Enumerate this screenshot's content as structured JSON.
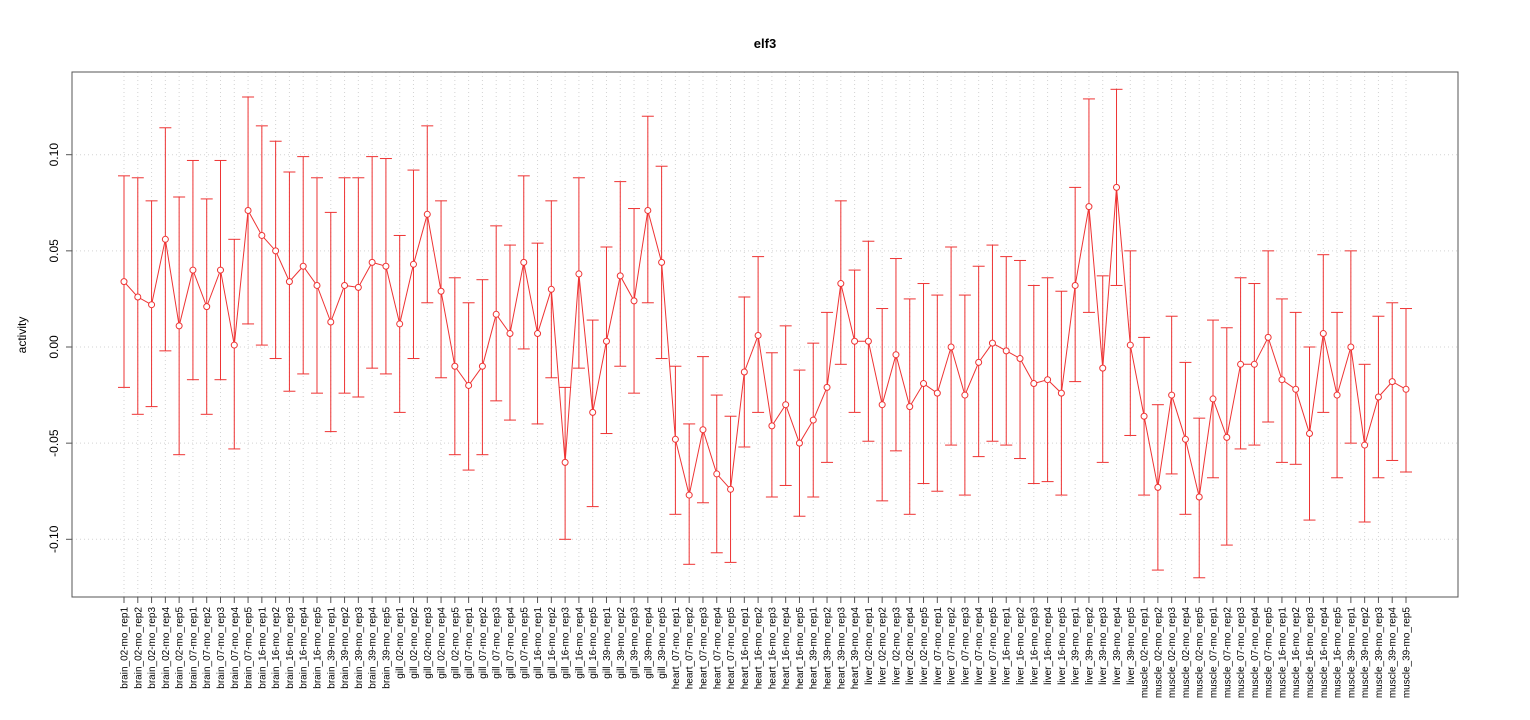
{
  "chart_data": {
    "type": "line",
    "title": "elf3",
    "xlabel": "",
    "ylabel": "activity",
    "ylim": [
      -0.13,
      0.143
    ],
    "yticks": [
      -0.1,
      -0.05,
      0.0,
      0.05,
      0.1
    ],
    "ytick_labels": [
      "-0.10",
      "-0.05",
      "0.00",
      "0.05",
      "0.10"
    ],
    "grid": true,
    "error_bars": true,
    "colors": {
      "series": "#ee3333",
      "grid": "#d3d3d3",
      "axis": "#555555"
    },
    "categories": [
      "brain_02-mo_rep1",
      "brain_02-mo_rep2",
      "brain_02-mo_rep3",
      "brain_02-mo_rep4",
      "brain_02-mo_rep5",
      "brain_07-mo_rep1",
      "brain_07-mo_rep2",
      "brain_07-mo_rep3",
      "brain_07-mo_rep4",
      "brain_07-mo_rep5",
      "brain_16-mo_rep1",
      "brain_16-mo_rep2",
      "brain_16-mo_rep3",
      "brain_16-mo_rep4",
      "brain_16-mo_rep5",
      "brain_39-mo_rep1",
      "brain_39-mo_rep2",
      "brain_39-mo_rep3",
      "brain_39-mo_rep4",
      "brain_39-mo_rep5",
      "gill_02-mo_rep1",
      "gill_02-mo_rep2",
      "gill_02-mo_rep3",
      "gill_02-mo_rep4",
      "gill_02-mo_rep5",
      "gill_07-mo_rep1",
      "gill_07-mo_rep2",
      "gill_07-mo_rep3",
      "gill_07-mo_rep4",
      "gill_07-mo_rep5",
      "gill_16-mo_rep1",
      "gill_16-mo_rep2",
      "gill_16-mo_rep3",
      "gill_16-mo_rep4",
      "gill_16-mo_rep5",
      "gill_39-mo_rep1",
      "gill_39-mo_rep2",
      "gill_39-mo_rep3",
      "gill_39-mo_rep4",
      "gill_39-mo_rep5",
      "heart_07-mo_rep1",
      "heart_07-mo_rep2",
      "heart_07-mo_rep3",
      "heart_07-mo_rep4",
      "heart_07-mo_rep5",
      "heart_16-mo_rep1",
      "heart_16-mo_rep2",
      "heart_16-mo_rep3",
      "heart_16-mo_rep4",
      "heart_16-mo_rep5",
      "heart_39-mo_rep1",
      "heart_39-mo_rep2",
      "heart_39-mo_rep3",
      "heart_39-mo_rep4",
      "liver_02-mo_rep1",
      "liver_02-mo_rep2",
      "liver_02-mo_rep3",
      "liver_02-mo_rep4",
      "liver_02-mo_rep5",
      "liver_07-mo_rep1",
      "liver_07-mo_rep2",
      "liver_07-mo_rep3",
      "liver_07-mo_rep4",
      "liver_07-mo_rep5",
      "liver_16-mo_rep1",
      "liver_16-mo_rep2",
      "liver_16-mo_rep3",
      "liver_16-mo_rep4",
      "liver_16-mo_rep5",
      "liver_39-mo_rep1",
      "liver_39-mo_rep2",
      "liver_39-mo_rep3",
      "liver_39-mo_rep4",
      "liver_39-mo_rep5",
      "muscle_02-mo_rep1",
      "muscle_02-mo_rep2",
      "muscle_02-mo_rep3",
      "muscle_02-mo_rep4",
      "muscle_02-mo_rep5",
      "muscle_07-mo_rep1",
      "muscle_07-mo_rep2",
      "muscle_07-mo_rep3",
      "muscle_07-mo_rep4",
      "muscle_07-mo_rep5",
      "muscle_16-mo_rep1",
      "muscle_16-mo_rep2",
      "muscle_16-mo_rep3",
      "muscle_16-mo_rep4",
      "muscle_16-mo_rep5",
      "muscle_39-mo_rep1",
      "muscle_39-mo_rep2",
      "muscle_39-mo_rep3",
      "muscle_39-mo_rep4",
      "muscle_39-mo_rep5"
    ],
    "values": [
      0.034,
      0.026,
      0.022,
      0.056,
      0.011,
      0.04,
      0.021,
      0.04,
      0.001,
      0.071,
      0.058,
      0.05,
      0.034,
      0.042,
      0.032,
      0.013,
      0.032,
      0.031,
      0.044,
      0.042,
      0.012,
      0.043,
      0.069,
      0.029,
      -0.01,
      -0.02,
      -0.01,
      0.017,
      0.007,
      0.044,
      0.007,
      0.03,
      -0.06,
      0.038,
      -0.034,
      0.003,
      0.037,
      0.024,
      0.071,
      0.044,
      -0.048,
      -0.077,
      -0.043,
      -0.066,
      -0.074,
      -0.013,
      0.006,
      -0.041,
      -0.03,
      -0.05,
      -0.038,
      -0.021,
      0.033,
      0.003,
      0.003,
      -0.03,
      -0.004,
      -0.031,
      -0.019,
      -0.024,
      0.0,
      -0.025,
      -0.008,
      0.002,
      -0.002,
      -0.006,
      -0.019,
      -0.017,
      -0.024,
      0.032,
      0.073,
      -0.011,
      0.083,
      0.001,
      -0.036,
      -0.073,
      -0.025,
      -0.048,
      -0.078,
      -0.027,
      -0.047,
      -0.009,
      -0.009,
      0.005,
      -0.017,
      -0.022,
      -0.045,
      0.007,
      -0.025,
      0.0,
      -0.051,
      -0.026,
      -0.018,
      -0.022
    ],
    "upper": [
      0.089,
      0.088,
      0.076,
      0.114,
      0.078,
      0.097,
      0.077,
      0.097,
      0.056,
      0.13,
      0.115,
      0.107,
      0.091,
      0.099,
      0.088,
      0.07,
      0.088,
      0.088,
      0.099,
      0.098,
      0.058,
      0.092,
      0.115,
      0.076,
      0.036,
      0.023,
      0.035,
      0.063,
      0.053,
      0.089,
      0.054,
      0.076,
      -0.021,
      0.088,
      0.014,
      0.052,
      0.086,
      0.072,
      0.12,
      0.094,
      -0.01,
      -0.04,
      -0.005,
      -0.025,
      -0.036,
      0.026,
      0.047,
      -0.003,
      0.011,
      -0.012,
      0.002,
      0.018,
      0.076,
      0.04,
      0.055,
      0.02,
      0.046,
      0.025,
      0.033,
      0.027,
      0.052,
      0.027,
      0.042,
      0.053,
      0.047,
      0.045,
      0.032,
      0.036,
      0.029,
      0.083,
      0.129,
      0.037,
      0.134,
      0.05,
      0.005,
      -0.03,
      0.016,
      -0.008,
      -0.037,
      0.014,
      0.01,
      0.036,
      0.033,
      0.05,
      0.025,
      0.018,
      0.0,
      0.048,
      0.018,
      0.05,
      -0.009,
      0.016,
      0.023,
      0.02
    ],
    "lower": [
      -0.021,
      -0.035,
      -0.031,
      -0.002,
      -0.056,
      -0.017,
      -0.035,
      -0.017,
      -0.053,
      0.012,
      0.001,
      -0.006,
      -0.023,
      -0.014,
      -0.024,
      -0.044,
      -0.024,
      -0.026,
      -0.011,
      -0.014,
      -0.034,
      -0.006,
      0.023,
      -0.016,
      -0.056,
      -0.064,
      -0.056,
      -0.028,
      -0.038,
      -0.001,
      -0.04,
      -0.016,
      -0.1,
      -0.011,
      -0.083,
      -0.045,
      -0.01,
      -0.024,
      0.023,
      -0.006,
      -0.087,
      -0.113,
      -0.081,
      -0.107,
      -0.112,
      -0.052,
      -0.034,
      -0.078,
      -0.072,
      -0.088,
      -0.078,
      -0.06,
      -0.009,
      -0.034,
      -0.049,
      -0.08,
      -0.054,
      -0.087,
      -0.071,
      -0.075,
      -0.051,
      -0.077,
      -0.057,
      -0.049,
      -0.051,
      -0.058,
      -0.071,
      -0.07,
      -0.077,
      -0.018,
      0.018,
      -0.06,
      0.032,
      -0.046,
      -0.077,
      -0.116,
      -0.066,
      -0.087,
      -0.12,
      -0.068,
      -0.103,
      -0.053,
      -0.051,
      -0.039,
      -0.06,
      -0.061,
      -0.09,
      -0.034,
      -0.068,
      -0.05,
      -0.091,
      -0.068,
      -0.059,
      -0.065
    ]
  }
}
